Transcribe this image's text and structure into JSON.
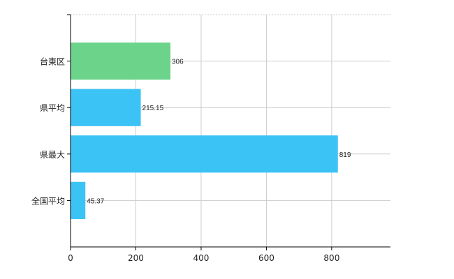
{
  "chart_data": {
    "type": "bar",
    "orientation": "horizontal",
    "categories": [
      "台東区",
      "県平均",
      "県最大",
      "全国平均"
    ],
    "values": [
      306,
      215.15,
      819,
      45.37
    ],
    "value_labels": [
      "306",
      "215.15",
      "819",
      "45.37"
    ],
    "bar_colors": [
      "#6cd38b",
      "#3cc3f5",
      "#3cc3f5",
      "#3cc3f5"
    ],
    "xlim": [
      0,
      980
    ],
    "xticks": [
      0,
      200,
      400,
      600,
      800
    ],
    "xtick_labels": [
      "0",
      "200",
      "400",
      "600",
      "800"
    ],
    "grid": true,
    "grid_color": "#cccccc",
    "axis_color": "#000000"
  }
}
